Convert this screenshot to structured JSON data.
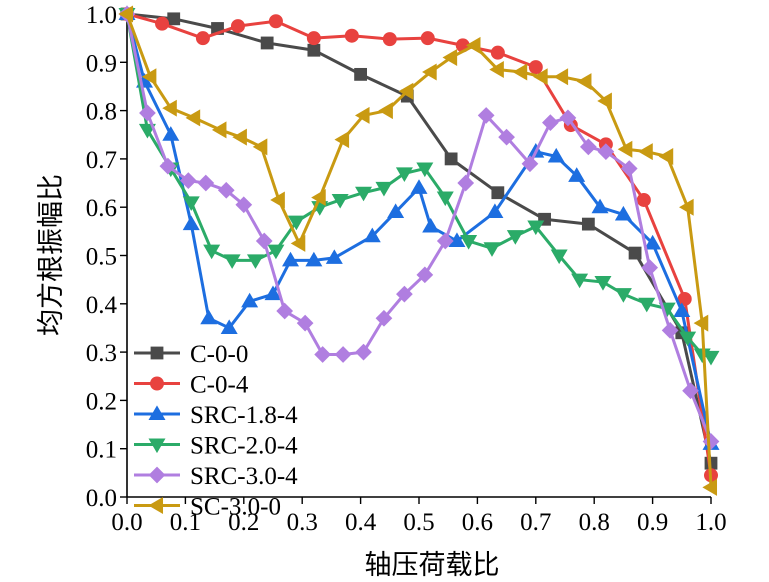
{
  "chart_data": {
    "type": "line",
    "title": "",
    "xlabel": "轴压荷载比",
    "ylabel": "均方根振幅比",
    "xlim": [
      0.0,
      1.0
    ],
    "ylim": [
      0.0,
      1.0
    ],
    "x_ticks": [
      "0.0",
      "0.1",
      "0.2",
      "0.3",
      "0.4",
      "0.5",
      "0.6",
      "0.7",
      "0.8",
      "0.9",
      "1.0"
    ],
    "y_ticks": [
      "0.0",
      "0.1",
      "0.2",
      "0.3",
      "0.4",
      "0.5",
      "0.6",
      "0.7",
      "0.8",
      "0.9",
      "1.0"
    ],
    "grid": false,
    "legend_position": "bottom-left",
    "series": [
      {
        "name": "C-0-0",
        "color": "#4a4a4a",
        "marker": "square",
        "x": [
          0.0,
          0.08,
          0.155,
          0.24,
          0.32,
          0.4,
          0.48,
          0.555,
          0.635,
          0.715,
          0.79,
          0.87,
          0.95,
          1.0
        ],
        "y": [
          1.0,
          0.99,
          0.97,
          0.94,
          0.925,
          0.875,
          0.83,
          0.7,
          0.63,
          0.575,
          0.565,
          0.505,
          0.34,
          0.07
        ]
      },
      {
        "name": "C-0-4",
        "color": "#e8423f",
        "marker": "circle",
        "x": [
          0.0,
          0.06,
          0.13,
          0.19,
          0.255,
          0.32,
          0.385,
          0.45,
          0.515,
          0.575,
          0.635,
          0.7,
          0.76,
          0.82,
          0.885,
          0.955,
          1.0
        ],
        "y": [
          1.0,
          0.98,
          0.95,
          0.975,
          0.985,
          0.95,
          0.955,
          0.948,
          0.95,
          0.935,
          0.92,
          0.89,
          0.77,
          0.73,
          0.615,
          0.41,
          0.045
        ]
      },
      {
        "name": "SRC-1.8-4",
        "color": "#1d6ee0",
        "marker": "triangle-up",
        "x": [
          0.0,
          0.03,
          0.075,
          0.11,
          0.14,
          0.175,
          0.21,
          0.25,
          0.28,
          0.32,
          0.355,
          0.42,
          0.46,
          0.5,
          0.52,
          0.565,
          0.63,
          0.7,
          0.735,
          0.77,
          0.81,
          0.85,
          0.9,
          0.95,
          1.0
        ],
        "y": [
          1.0,
          0.86,
          0.75,
          0.565,
          0.37,
          0.35,
          0.405,
          0.42,
          0.49,
          0.49,
          0.495,
          0.54,
          0.59,
          0.64,
          0.56,
          0.53,
          0.59,
          0.715,
          0.705,
          0.665,
          0.6,
          0.585,
          0.525,
          0.385,
          0.11
        ]
      },
      {
        "name": "SRC-2.0-4",
        "color": "#2bab68",
        "marker": "triangle-down",
        "x": [
          0.0,
          0.035,
          0.075,
          0.11,
          0.145,
          0.18,
          0.22,
          0.255,
          0.29,
          0.33,
          0.365,
          0.405,
          0.44,
          0.475,
          0.51,
          0.545,
          0.585,
          0.625,
          0.665,
          0.7,
          0.74,
          0.775,
          0.815,
          0.85,
          0.89,
          0.925,
          0.96,
          0.985,
          1.0
        ],
        "y": [
          1.0,
          0.76,
          0.68,
          0.61,
          0.51,
          0.49,
          0.49,
          0.51,
          0.57,
          0.6,
          0.615,
          0.63,
          0.64,
          0.67,
          0.68,
          0.62,
          0.53,
          0.515,
          0.54,
          0.56,
          0.5,
          0.45,
          0.445,
          0.42,
          0.4,
          0.39,
          0.33,
          0.295,
          0.29
        ]
      },
      {
        "name": "SRC-3.0-4",
        "color": "#b07ee0",
        "marker": "diamond",
        "x": [
          0.0,
          0.035,
          0.07,
          0.105,
          0.135,
          0.17,
          0.2,
          0.235,
          0.27,
          0.305,
          0.335,
          0.37,
          0.405,
          0.44,
          0.475,
          0.51,
          0.545,
          0.58,
          0.615,
          0.65,
          0.69,
          0.725,
          0.755,
          0.79,
          0.82,
          0.86,
          0.895,
          0.93,
          0.965,
          1.0
        ],
        "y": [
          1.0,
          0.795,
          0.685,
          0.655,
          0.65,
          0.635,
          0.605,
          0.53,
          0.385,
          0.36,
          0.295,
          0.295,
          0.3,
          0.37,
          0.42,
          0.46,
          0.53,
          0.65,
          0.79,
          0.745,
          0.69,
          0.775,
          0.785,
          0.725,
          0.715,
          0.68,
          0.475,
          0.345,
          0.22,
          0.115
        ]
      },
      {
        "name": "SC-3.0-0",
        "color": "#c99a12",
        "marker": "triangle-left",
        "x": [
          0.0,
          0.04,
          0.075,
          0.115,
          0.16,
          0.195,
          0.23,
          0.26,
          0.295,
          0.33,
          0.37,
          0.405,
          0.445,
          0.48,
          0.52,
          0.555,
          0.595,
          0.635,
          0.675,
          0.71,
          0.745,
          0.785,
          0.82,
          0.855,
          0.89,
          0.925,
          0.96,
          0.985,
          1.0
        ],
        "y": [
          1.0,
          0.87,
          0.805,
          0.785,
          0.76,
          0.745,
          0.725,
          0.615,
          0.525,
          0.62,
          0.74,
          0.79,
          0.8,
          0.84,
          0.88,
          0.91,
          0.935,
          0.885,
          0.88,
          0.87,
          0.87,
          0.86,
          0.82,
          0.72,
          0.715,
          0.705,
          0.6,
          0.36,
          0.02
        ]
      }
    ]
  }
}
